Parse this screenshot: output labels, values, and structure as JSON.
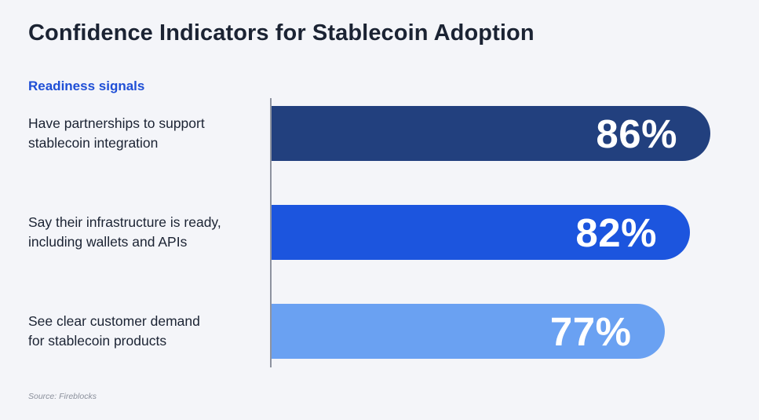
{
  "title": "Confidence Indicators for Stablecoin Adoption",
  "subtitle": "Readiness signals",
  "source": "Source: Fireblocks",
  "colors": {
    "background": "#f4f5f9",
    "title": "#1b2333",
    "subtitle": "#1f4fd6",
    "bars": [
      "#22407e",
      "#1c55de",
      "#6aa1f2"
    ]
  },
  "chart_data": {
    "type": "bar",
    "orientation": "horizontal",
    "title": "Confidence Indicators for Stablecoin Adoption",
    "subtitle": "Readiness signals",
    "categories": [
      "Have partnerships to support\nstablecoin integration",
      "Say their infrastructure is ready,\nincluding wallets and APIs",
      "See clear customer demand\nfor stablecoin products"
    ],
    "values": [
      86,
      82,
      77
    ],
    "value_labels": [
      "86%",
      "82%",
      "77%"
    ],
    "unit": "%",
    "xlim": [
      0,
      100
    ],
    "grid": false,
    "legend": "none"
  }
}
